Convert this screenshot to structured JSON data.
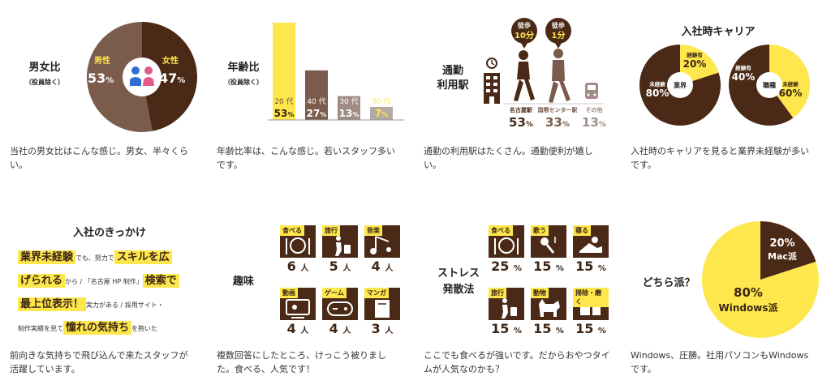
{
  "gender": {
    "title": "男女比",
    "subtitle": "（役員除く）",
    "male_label": "男性",
    "male_value": "53",
    "female_label": "女性",
    "female_value": "47",
    "unit": "%",
    "desc": "当社の男女比はこんな感じ。男女、半々くらい。"
  },
  "age": {
    "title": "年齢比",
    "subtitle": "（役員除く）",
    "desc": "年齢比率は、こんな感じ。若いスタッフ多いです。"
  },
  "station": {
    "title_line1": "通勤",
    "title_line2": "利用駅",
    "walk1_label": "徒歩",
    "walk1_value": "10分",
    "walk2_label": "徒歩",
    "walk2_value": "1分",
    "desc": "通勤の利用駅はたくさん。通勤便利が嬉しい。"
  },
  "career": {
    "title": "入社時キャリア",
    "desc": "入社時のキャリアを見ると業界未経験が多いです。"
  },
  "motive": {
    "title": "入社のきっかけ",
    "l1_hl1": "業界未経験",
    "l1_sm": "でも、努力で",
    "l1_hl2": "スキルを広",
    "l2_hl1": "げられる",
    "l2_sm": "から / 「名古屋 HP 制作」",
    "l2_hl2": "検索で",
    "l3_hl1": "最上位表示！",
    "l3_sm": "実力がある / 採用サイト・",
    "l4_sm": "制作実績を見て",
    "l4_hl1": "憧れの気持ち",
    "l4_sm2": "を抱いた",
    "desc": "前向きな気持ちで飛び込んで来たスタッフが活躍しています。"
  },
  "hobby": {
    "title": "趣味",
    "unit": "人",
    "desc": "複数回答にしたところ、けっこう被りました。食べる、人気です！"
  },
  "stress": {
    "title_line1": "ストレス",
    "title_line2": "発散法",
    "unit": "%",
    "desc": "ここでも食べるが強いです。だからおやつタイムが人気なのかも？"
  },
  "os": {
    "title": "どちら派？",
    "desc": "Windows、圧勝。社用パソコンもWindowsです。"
  },
  "colors": {
    "dark": "#4a2a17",
    "mid": "#7a5b4c",
    "light": "#a08c82",
    "yellow": "#fde74c",
    "pale": "#b4aaa4"
  },
  "chart_data": [
    {
      "type": "pie",
      "title": "男女比",
      "categories": [
        "男性",
        "女性"
      ],
      "values": [
        53,
        47
      ]
    },
    {
      "type": "bar",
      "title": "年齢比",
      "categories": [
        "20代",
        "40代",
        "30代",
        "50代"
      ],
      "values": [
        53,
        27,
        13,
        7
      ],
      "category_labels": [
        "20 代",
        "40 代",
        "30 代",
        "50 代"
      ],
      "value_labels": [
        "53",
        "27",
        "13",
        "7"
      ],
      "unit": "%"
    },
    {
      "type": "bar",
      "title": "通勤 利用駅",
      "categories": [
        "名古屋駅",
        "国際センター駅",
        "その他"
      ],
      "values": [
        53,
        33,
        13
      ],
      "unit": "%"
    },
    {
      "type": "pie",
      "title": "業界",
      "categories": [
        "未経験",
        "経験有"
      ],
      "values": [
        80,
        20
      ],
      "labels": [
        "未経験",
        "経験有"
      ],
      "value_labels": [
        "80%",
        "20%"
      ]
    },
    {
      "type": "pie",
      "title": "職種",
      "categories": [
        "未経験",
        "経験有"
      ],
      "values": [
        60,
        40
      ],
      "labels": [
        "未経験",
        "経験有"
      ],
      "value_labels": [
        "60%",
        "40%"
      ]
    },
    {
      "type": "bar",
      "title": "趣味",
      "categories": [
        "食べる",
        "旅行",
        "音楽",
        "動画",
        "ゲーム",
        "マンガ"
      ],
      "values": [
        6,
        5,
        4,
        4,
        4,
        3
      ],
      "unit": "人"
    },
    {
      "type": "bar",
      "title": "ストレス 発散法",
      "categories": [
        "食べる",
        "歌う",
        "寝る",
        "旅行",
        "動物",
        "掃除・磨く"
      ],
      "values": [
        25,
        15,
        15,
        15,
        15,
        15
      ],
      "unit": "%"
    },
    {
      "type": "pie",
      "title": "どちら派？",
      "categories": [
        "Mac派",
        "Windows派"
      ],
      "values": [
        20,
        80
      ],
      "value_labels": [
        "20%",
        "80%"
      ]
    }
  ]
}
